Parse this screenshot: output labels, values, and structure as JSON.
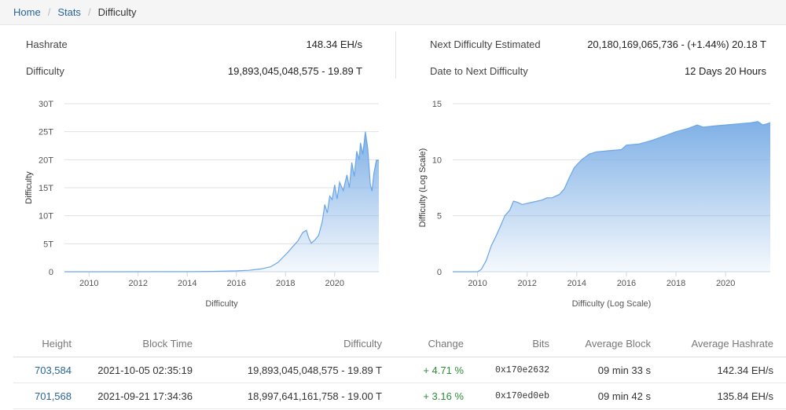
{
  "breadcrumb": {
    "home": "Home",
    "stats": "Stats",
    "current": "Difficulty"
  },
  "stats": {
    "hashrate_label": "Hashrate",
    "hashrate_value": "148.34 EH/s",
    "difficulty_label": "Difficulty",
    "difficulty_value": "19,893,045,048,575 - 19.89 T",
    "next_label": "Next Difficulty Estimated",
    "next_value": "20,180,169,065,736 - (+1.44%) 20.18 T",
    "date_label": "Date to Next Difficulty",
    "date_value": "12 Days 20 Hours"
  },
  "chart_data": [
    {
      "type": "area",
      "xlabel": "Difficulty",
      "ylabel": "Difficulty",
      "x_ticks": [
        "2010",
        "2012",
        "2014",
        "2016",
        "2018",
        "2020"
      ],
      "y_ticks": [
        "0",
        "5T",
        "10T",
        "15T",
        "20T",
        "25T",
        "30T"
      ],
      "xlim": [
        2009.0,
        2021.8
      ],
      "ylim": [
        0,
        30
      ],
      "y_unit": "T",
      "grid": true,
      "color": "#7fb0e6",
      "points": [
        [
          2009.0,
          0
        ],
        [
          2011.0,
          0
        ],
        [
          2013.0,
          0.01
        ],
        [
          2014.0,
          0.02
        ],
        [
          2015.0,
          0.05
        ],
        [
          2016.0,
          0.16
        ],
        [
          2016.5,
          0.25
        ],
        [
          2017.0,
          0.5
        ],
        [
          2017.4,
          0.9
        ],
        [
          2017.7,
          1.7
        ],
        [
          2017.9,
          2.6
        ],
        [
          2018.1,
          3.5
        ],
        [
          2018.3,
          4.5
        ],
        [
          2018.5,
          5.5
        ],
        [
          2018.7,
          7.0
        ],
        [
          2018.85,
          7.4
        ],
        [
          2018.95,
          6.0
        ],
        [
          2019.05,
          5.1
        ],
        [
          2019.2,
          5.7
        ],
        [
          2019.35,
          6.5
        ],
        [
          2019.5,
          9.0
        ],
        [
          2019.6,
          12.0
        ],
        [
          2019.7,
          10.5
        ],
        [
          2019.8,
          13.5
        ],
        [
          2019.9,
          12.9
        ],
        [
          2020.0,
          15.5
        ],
        [
          2020.1,
          13.0
        ],
        [
          2020.2,
          16.0
        ],
        [
          2020.35,
          14.5
        ],
        [
          2020.5,
          17.3
        ],
        [
          2020.6,
          15.0
        ],
        [
          2020.7,
          19.5
        ],
        [
          2020.8,
          17.0
        ],
        [
          2020.9,
          21.5
        ],
        [
          2021.0,
          20.0
        ],
        [
          2021.05,
          23.0
        ],
        [
          2021.15,
          21.0
        ],
        [
          2021.25,
          25.0
        ],
        [
          2021.35,
          22.0
        ],
        [
          2021.45,
          15.6
        ],
        [
          2021.52,
          14.4
        ],
        [
          2021.6,
          17.6
        ],
        [
          2021.7,
          19.9
        ],
        [
          2021.8,
          19.89
        ]
      ]
    },
    {
      "type": "area",
      "xlabel": "Difficulty (Log Scale)",
      "ylabel": "Difficulty (Log Scale)",
      "x_ticks": [
        "2010",
        "2012",
        "2014",
        "2016",
        "2018",
        "2020"
      ],
      "y_ticks": [
        "0",
        "5",
        "10",
        "15"
      ],
      "xlim": [
        2009.0,
        2021.8
      ],
      "ylim": [
        0,
        15
      ],
      "grid": true,
      "color": "#7fb0e6",
      "points": [
        [
          2009.0,
          0
        ],
        [
          2010.0,
          0
        ],
        [
          2010.15,
          0.2
        ],
        [
          2010.35,
          1.0
        ],
        [
          2010.55,
          2.3
        ],
        [
          2010.75,
          3.2
        ],
        [
          2010.95,
          4.2
        ],
        [
          2011.1,
          5.0
        ],
        [
          2011.3,
          5.5
        ],
        [
          2011.45,
          6.3
        ],
        [
          2011.6,
          6.2
        ],
        [
          2011.8,
          6.0
        ],
        [
          2012.2,
          6.2
        ],
        [
          2012.6,
          6.4
        ],
        [
          2012.8,
          6.6
        ],
        [
          2013.0,
          6.6
        ],
        [
          2013.3,
          6.9
        ],
        [
          2013.5,
          7.4
        ],
        [
          2013.7,
          8.4
        ],
        [
          2013.9,
          9.3
        ],
        [
          2014.2,
          10.0
        ],
        [
          2014.5,
          10.5
        ],
        [
          2014.8,
          10.7
        ],
        [
          2015.3,
          10.8
        ],
        [
          2015.8,
          10.9
        ],
        [
          2016.0,
          11.3
        ],
        [
          2016.5,
          11.4
        ],
        [
          2017.0,
          11.7
        ],
        [
          2017.5,
          12.1
        ],
        [
          2018.0,
          12.5
        ],
        [
          2018.5,
          12.8
        ],
        [
          2018.85,
          13.1
        ],
        [
          2019.1,
          12.9
        ],
        [
          2019.5,
          13.0
        ],
        [
          2020.0,
          13.1
        ],
        [
          2020.5,
          13.2
        ],
        [
          2021.0,
          13.3
        ],
        [
          2021.3,
          13.4
        ],
        [
          2021.5,
          13.1
        ],
        [
          2021.8,
          13.3
        ]
      ]
    }
  ],
  "table": {
    "headers": [
      "Height",
      "Block Time",
      "Difficulty",
      "Change",
      "Bits",
      "Average Block",
      "Average Hashrate"
    ],
    "rows": [
      {
        "height": "703,584",
        "time": "2021-10-05 02:35:19",
        "difficulty": "19,893,045,048,575 - 19.89 T",
        "change": "+ 4.71 %",
        "bits": "0x170e2632",
        "avg_block": "09 min 33 s",
        "avg_hashrate": "142.34 EH/s"
      },
      {
        "height": "701,568",
        "time": "2021-09-21 17:34:36",
        "difficulty": "18,997,641,161,758 - 19.00 T",
        "change": "+ 3.16 %",
        "bits": "0x170ed0eb",
        "avg_block": "09 min 42 s",
        "avg_hashrate": "135.84 EH/s"
      }
    ]
  }
}
